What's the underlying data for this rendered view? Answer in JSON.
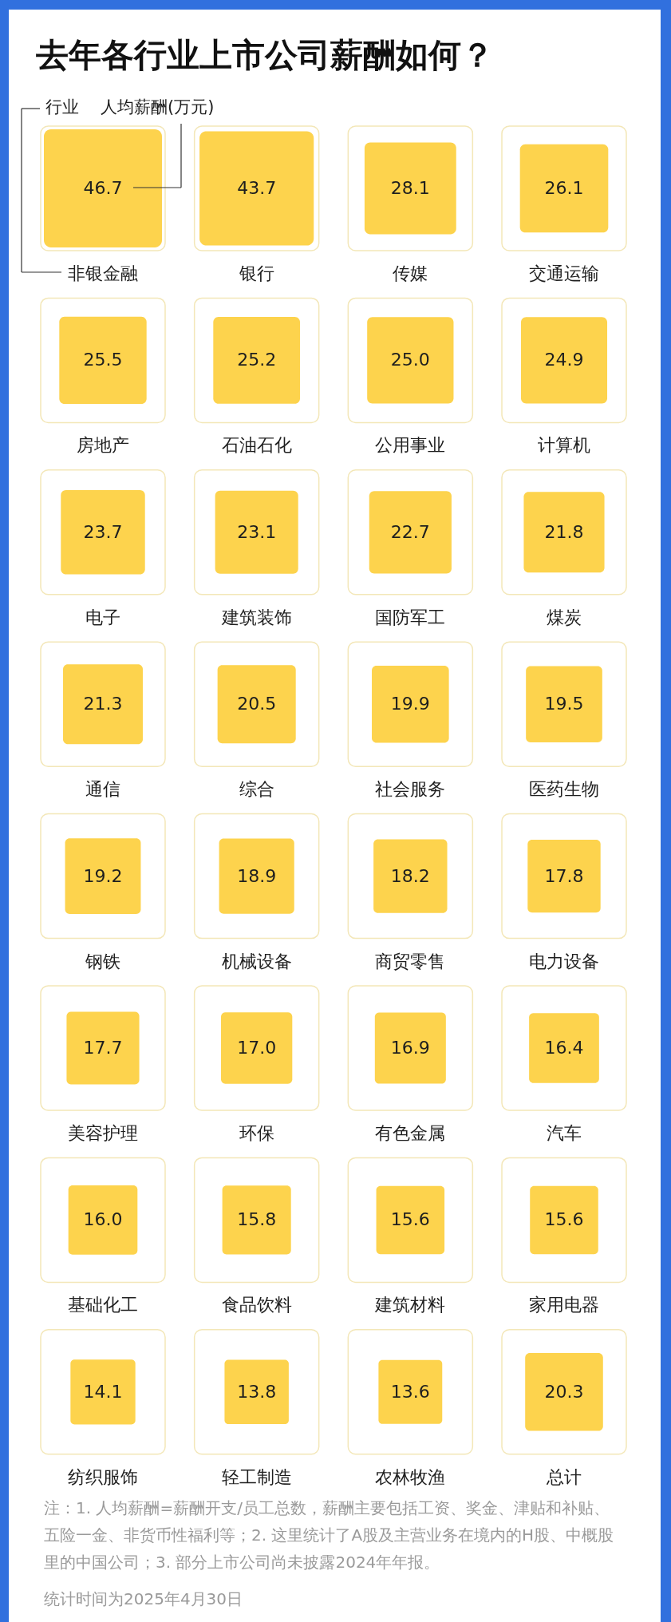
{
  "chart_data": {
    "type": "other",
    "title": "去年各行业上市公司薪酬如何？",
    "annotations": [
      "行业",
      "人均薪酬(万元)",
      "注：1. 人均薪酬=薪酬开支/员工总数，薪酬主要包括工资、奖金、津贴和补贴、五险一金、非货币性福利等；2. 这里统计了A股及主营业务在境内的H股、中概股里的中国公司；3. 部分上市公司尚未披露2024年年报。",
      "统计时间为2025年4月30日"
    ],
    "categories": [
      "非银金融",
      "银行",
      "传媒",
      "交通运输",
      "房地产",
      "石油石化",
      "公用事业",
      "计算机",
      "电子",
      "建筑装饰",
      "国防军工",
      "煤炭",
      "通信",
      "综合",
      "社会服务",
      "医药生物",
      "钢铁",
      "机械设备",
      "商贸零售",
      "电力设备",
      "美容护理",
      "环保",
      "有色金属",
      "汽车",
      "基础化工",
      "食品饮料",
      "建筑材料",
      "家用电器",
      "纺织服饰",
      "轻工制造",
      "农林牧渔",
      "总计"
    ],
    "values": [
      46.7,
      43.7,
      28.1,
      26.1,
      25.5,
      25.2,
      25.0,
      24.9,
      23.7,
      23.1,
      22.7,
      21.8,
      21.3,
      20.5,
      19.9,
      19.5,
      19.2,
      18.9,
      18.2,
      17.8,
      17.7,
      17.0,
      16.9,
      16.4,
      16.0,
      15.8,
      15.6,
      15.6,
      14.1,
      13.8,
      13.6,
      20.3
    ],
    "value_labels": [
      "46.7",
      "43.7",
      "28.1",
      "26.1",
      "25.5",
      "25.2",
      "25.0",
      "24.9",
      "23.7",
      "23.1",
      "22.7",
      "21.8",
      "21.3",
      "20.5",
      "19.9",
      "19.5",
      "19.2",
      "18.9",
      "18.2",
      "17.8",
      "17.7",
      "17.0",
      "16.9",
      "16.4",
      "16.0",
      "15.8",
      "15.6",
      "15.6",
      "14.1",
      "13.8",
      "13.6",
      "20.3"
    ],
    "color": "#fdd34d"
  }
}
